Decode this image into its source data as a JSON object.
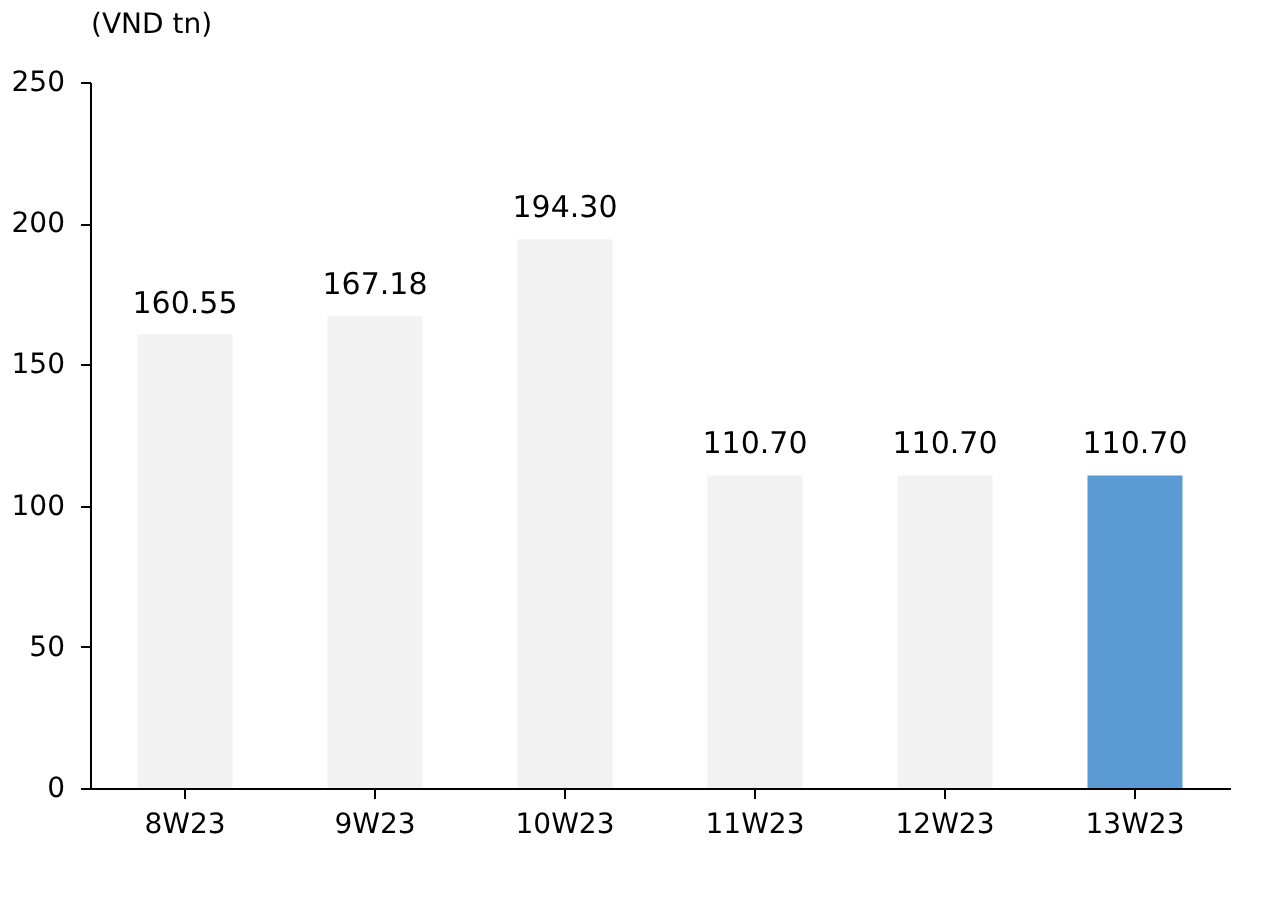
{
  "chart_data": {
    "type": "bar",
    "ylabel": "(VND tn)",
    "categories": [
      "8W23",
      "9W23",
      "10W23",
      "11W23",
      "12W23",
      "13W23"
    ],
    "values": [
      160.55,
      167.18,
      194.3,
      110.7,
      110.7,
      110.7
    ],
    "value_labels": [
      "160.55",
      "167.18",
      "194.30",
      "110.70",
      "110.70",
      "110.70"
    ],
    "colors": [
      "#f2f2f2",
      "#f2f2f2",
      "#f2f2f2",
      "#f2f2f2",
      "#f2f2f2",
      "#5b9bd5"
    ],
    "ylim": [
      0,
      250
    ],
    "yticks": [
      0,
      50,
      100,
      150,
      200,
      250
    ],
    "grid": false
  }
}
